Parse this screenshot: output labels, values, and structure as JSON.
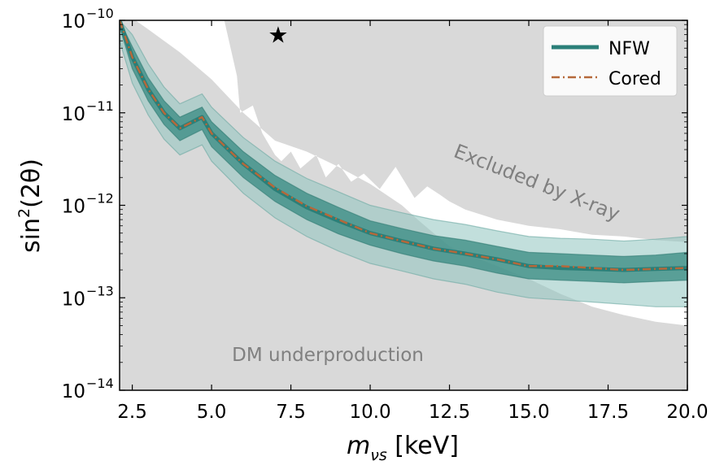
{
  "chart_data": {
    "type": "area",
    "xlabel_base": "m",
    "xlabel_sub": "νs",
    "xlabel_unit": " [keV]",
    "ylabel_fn": "sin",
    "ylabel_pow": "2",
    "ylabel_arg": "(2θ)",
    "xlim": [
      2.1,
      20.0
    ],
    "ylim": [
      1e-14,
      1e-10
    ],
    "y_scale": "log",
    "x_ticks": [
      "2.5",
      "5.0",
      "7.5",
      "10.0",
      "12.5",
      "15.0",
      "17.5",
      "20.0"
    ],
    "x_tick_values": [
      2.5,
      5.0,
      7.5,
      10.0,
      12.5,
      15.0,
      17.5,
      20.0
    ],
    "y_tick_base": "10",
    "y_tick_exponents": [
      "−14",
      "−13",
      "−12",
      "−11",
      "−10"
    ],
    "y_tick_values": [
      -14,
      -13,
      -12,
      -11,
      -10
    ],
    "annotations": {
      "xray": "Excluded by X-ray",
      "underproduction": "DM underproduction"
    },
    "marker": {
      "symbol": "★",
      "x": 7.1,
      "y": 7e-11
    },
    "legend": {
      "position": "top-right",
      "entries": [
        "NFW",
        "Cored"
      ]
    },
    "colors": {
      "nfw": "#2b7f78",
      "band_inner": "#3f8f86",
      "band_outer": "#8fc5bf",
      "cored": "#b5683a",
      "excluded": "#d9d9d9",
      "annotation_text": "#808080"
    },
    "series": [
      {
        "name": "NFW",
        "style": "solid",
        "x": [
          2.1,
          2.5,
          3.0,
          3.5,
          4.0,
          4.7,
          5.0,
          6.0,
          7.0,
          8.0,
          9.0,
          10.0,
          11.0,
          12.0,
          13.0,
          14.0,
          15.0,
          16.0,
          17.0,
          18.0,
          19.0,
          20.0
        ],
        "y": [
          1e-10,
          4e-11,
          1.8e-11,
          1e-11,
          6.8e-12,
          9e-12,
          6e-12,
          2.8e-12,
          1.5e-12,
          9.5e-13,
          6.8e-13,
          5e-13,
          4.1e-13,
          3.4e-13,
          3e-13,
          2.6e-13,
          2.2e-13,
          2.1e-13,
          2.05e-13,
          2e-13,
          2.05e-13,
          2.1e-13
        ]
      },
      {
        "name": "Cored",
        "style": "dashdot",
        "x": [
          2.1,
          2.5,
          3.0,
          3.5,
          4.0,
          4.7,
          5.0,
          6.0,
          7.0,
          8.0,
          9.0,
          10.0,
          11.0,
          12.0,
          13.0,
          14.0,
          15.0,
          16.0,
          17.0,
          18.0,
          19.0,
          20.0
        ],
        "y": [
          1e-10,
          4e-11,
          1.8e-11,
          1e-11,
          6.8e-12,
          9e-12,
          6e-12,
          2.8e-12,
          1.55e-12,
          9.8e-13,
          7e-13,
          5e-13,
          4.1e-13,
          3.4e-13,
          3e-13,
          2.6e-13,
          2.2e-13,
          2.2e-13,
          2.1e-13,
          2e-13,
          2.05e-13,
          2.1e-13
        ]
      }
    ],
    "bands": [
      {
        "level": "inner",
        "x": [
          2.1,
          2.5,
          3.0,
          3.5,
          4.0,
          4.7,
          5.0,
          6.0,
          7.0,
          8.0,
          9.0,
          10.0,
          11.0,
          12.0,
          13.0,
          14.0,
          15.0,
          16.0,
          17.0,
          18.0,
          19.0,
          20.0
        ],
        "upper": [
          1e-10,
          5.2e-11,
          2.4e-11,
          1.35e-11,
          9e-12,
          1.15e-11,
          8e-12,
          3.8e-12,
          2.1e-12,
          1.35e-12,
          9.5e-13,
          6.8e-13,
          5.6e-13,
          4.7e-13,
          4.2e-13,
          3.6e-13,
          3.1e-13,
          3e-13,
          2.9e-13,
          2.8e-13,
          2.9e-13,
          3.1e-13
        ],
        "lower": [
          8.5e-11,
          3e-11,
          1.35e-11,
          7.5e-12,
          5e-12,
          6.6e-12,
          4.3e-12,
          2e-12,
          1.1e-12,
          7e-13,
          4.9e-13,
          3.7e-13,
          3e-13,
          2.5e-13,
          2.2e-13,
          1.85e-13,
          1.6e-13,
          1.55e-13,
          1.5e-13,
          1.45e-13,
          1.5e-13,
          1.55e-13
        ]
      },
      {
        "level": "outer",
        "x": [
          2.1,
          2.5,
          3.0,
          3.5,
          4.0,
          4.7,
          5.0,
          6.0,
          7.0,
          8.0,
          9.0,
          10.0,
          11.0,
          12.0,
          13.0,
          14.0,
          15.0,
          16.0,
          17.0,
          18.0,
          19.0,
          20.0
        ],
        "upper": [
          1e-10,
          7e-11,
          3.4e-11,
          1.9e-11,
          1.25e-11,
          1.6e-11,
          1.15e-11,
          5.4e-12,
          3e-12,
          1.95e-12,
          1.4e-12,
          1e-12,
          8.3e-13,
          7e-13,
          6.2e-13,
          5.3e-13,
          4.6e-13,
          4.4e-13,
          4.3e-13,
          4.1e-13,
          4.3e-13,
          4.6e-13
        ],
        "lower": [
          6e-11,
          2.1e-11,
          9.5e-12,
          5.2e-12,
          3.5e-12,
          4.5e-12,
          3e-12,
          1.35e-12,
          7.3e-13,
          4.6e-13,
          3.2e-13,
          2.35e-13,
          1.95e-13,
          1.6e-13,
          1.4e-13,
          1.15e-13,
          1e-13,
          9.5e-14,
          9e-14,
          8.5e-14,
          8e-14,
          8e-14
        ]
      }
    ]
  }
}
